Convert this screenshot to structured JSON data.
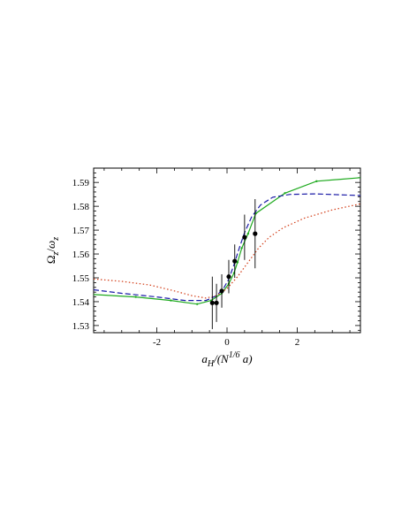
{
  "chart_data": {
    "type": "line",
    "xlabel": "a_H/(N^{1/6} a)",
    "ylabel": "Ω_z/ω_z",
    "xlabel_parts": {
      "a": "a",
      "sub": "H",
      "mid": "/(N",
      "sup": "1/6",
      "end": "a)"
    },
    "ylabel_parts": {
      "big": "Ω",
      "big_sub": "z",
      "slash": "/",
      "small": "ω",
      "small_sub": "z"
    },
    "xlim": [
      -3.8,
      3.8
    ],
    "ylim": [
      1.527,
      1.596
    ],
    "xticks": [
      -2,
      0,
      2
    ],
    "yticks": [
      1.53,
      1.54,
      1.55,
      1.56,
      1.57,
      1.58,
      1.59
    ],
    "xtick_labels": [
      "-2",
      "0",
      "2"
    ],
    "ytick_labels": [
      "1.53",
      "1.54",
      "1.55",
      "1.56",
      "1.57",
      "1.58",
      "1.59"
    ],
    "grid": false,
    "series": [
      {
        "style": "solid",
        "color": "#1faa1f",
        "markers": true,
        "points": [
          [
            -3.8,
            1.543
          ],
          [
            -2.6,
            1.542
          ],
          [
            -1.6,
            1.5405
          ],
          [
            -0.85,
            1.539
          ],
          [
            -0.45,
            1.5405
          ],
          [
            -0.15,
            1.5435
          ],
          [
            0.05,
            1.5475
          ],
          [
            0.2,
            1.552
          ],
          [
            0.3,
            1.5565
          ],
          [
            0.42,
            1.5625
          ],
          [
            0.6,
            1.5685
          ],
          [
            0.82,
            1.577
          ],
          [
            1.65,
            1.5855
          ],
          [
            2.55,
            1.5905
          ],
          [
            3.8,
            1.592
          ]
        ]
      },
      {
        "style": "dashed",
        "color": "#1a1aa6",
        "markers": false,
        "points": [
          [
            -3.8,
            1.545
          ],
          [
            -3.0,
            1.5435
          ],
          [
            -2.0,
            1.542
          ],
          [
            -1.2,
            1.5405
          ],
          [
            -0.6,
            1.5405
          ],
          [
            -0.3,
            1.5425
          ],
          [
            -0.1,
            1.5455
          ],
          [
            0.05,
            1.5495
          ],
          [
            0.2,
            1.5555
          ],
          [
            0.35,
            1.5625
          ],
          [
            0.5,
            1.569
          ],
          [
            0.7,
            1.5755
          ],
          [
            0.95,
            1.5805
          ],
          [
            1.3,
            1.5838
          ],
          [
            1.8,
            1.585
          ],
          [
            2.5,
            1.5852
          ],
          [
            3.8,
            1.5845
          ]
        ]
      },
      {
        "style": "dotted",
        "color": "#d23a14",
        "markers": false,
        "points": [
          [
            -3.8,
            1.5495
          ],
          [
            -3.0,
            1.5485
          ],
          [
            -2.2,
            1.547
          ],
          [
            -1.5,
            1.5445
          ],
          [
            -1.0,
            1.5425
          ],
          [
            -0.6,
            1.5415
          ],
          [
            -0.3,
            1.5425
          ],
          [
            0.0,
            1.5455
          ],
          [
            0.3,
            1.5505
          ],
          [
            0.6,
            1.5565
          ],
          [
            0.9,
            1.5625
          ],
          [
            1.2,
            1.567
          ],
          [
            1.6,
            1.571
          ],
          [
            2.2,
            1.575
          ],
          [
            3.0,
            1.5785
          ],
          [
            3.8,
            1.581
          ]
        ]
      },
      {
        "style": "points",
        "color": "#000000",
        "points": [
          [
            -0.42,
            1.5395
          ],
          [
            -0.3,
            1.5395
          ],
          [
            -0.15,
            1.5445
          ],
          [
            0.05,
            1.5505
          ],
          [
            0.22,
            1.557
          ],
          [
            0.5,
            1.567
          ],
          [
            0.8,
            1.5685
          ]
        ],
        "errors": [
          0.011,
          0.008,
          0.007,
          0.007,
          0.007,
          0.0095,
          0.0145
        ]
      }
    ]
  }
}
